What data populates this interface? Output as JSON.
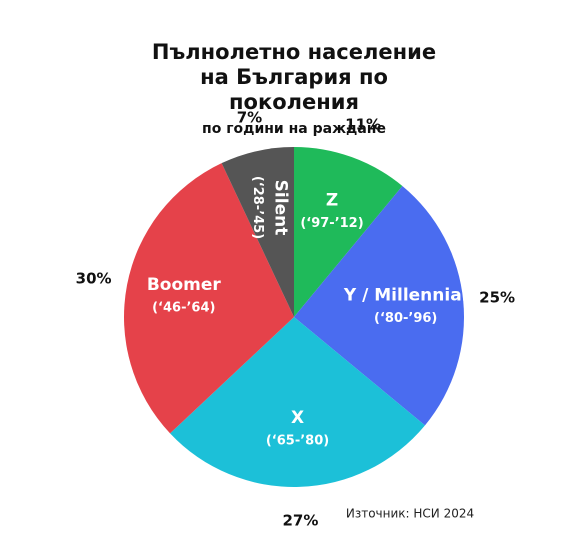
{
  "chart_data": {
    "type": "pie",
    "title": "Пълнолетно население на България по поколения",
    "subtitle": "по години на раждане",
    "categories": [
      "Z",
      "Y / Millennial",
      "X",
      "Boomer",
      "Silent"
    ],
    "periods": [
      "(‘97-’12)",
      "(‘80-’96)",
      "(‘65-’80)",
      "(‘46-’64)",
      "(‘28-’45)"
    ],
    "values": [
      11,
      25,
      27,
      30,
      7
    ],
    "value_labels": [
      "11%",
      "25%",
      "27%",
      "30%",
      "7%"
    ],
    "colors": [
      "#1fba5a",
      "#4a6cf0",
      "#1cc0d8",
      "#e5424a",
      "#555555"
    ],
    "source": "Източник: НСИ 2024"
  }
}
